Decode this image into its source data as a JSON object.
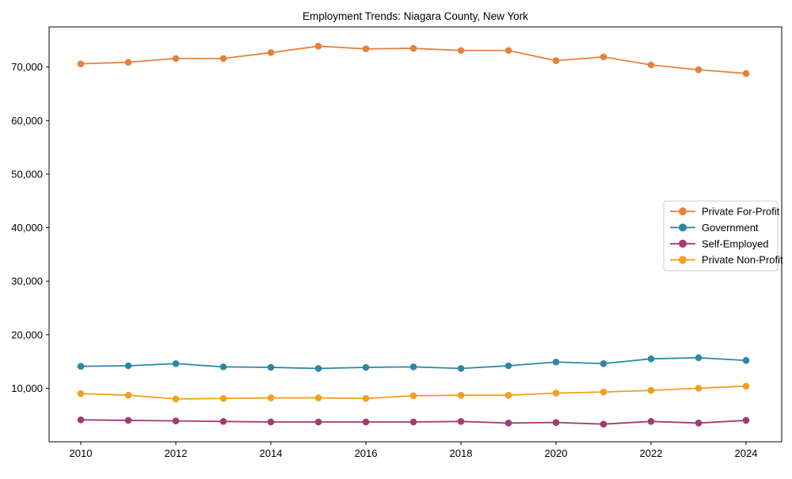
{
  "title": "Employment Trends: Niagara County, New York",
  "chart_data": {
    "type": "line",
    "title": "Employment Trends: Niagara County, New York",
    "xlabel": "",
    "ylabel": "",
    "x": [
      2010,
      2011,
      2012,
      2013,
      2014,
      2015,
      2016,
      2017,
      2018,
      2019,
      2020,
      2021,
      2022,
      2023,
      2024
    ],
    "series": [
      {
        "name": "Private For-Profit",
        "color": "#E5813D",
        "values": [
          70600,
          70900,
          71600,
          71600,
          72700,
          73900,
          73400,
          73500,
          73100,
          73100,
          71200,
          71900,
          70400,
          69500,
          68800
        ]
      },
      {
        "name": "Government",
        "color": "#2E86A5",
        "values": [
          14100,
          14200,
          14600,
          14000,
          13900,
          13700,
          13900,
          14000,
          13700,
          14200,
          14900,
          14600,
          15500,
          15700,
          15200
        ]
      },
      {
        "name": "Self-Employed",
        "color": "#A23B72",
        "values": [
          4100,
          4000,
          3900,
          3800,
          3700,
          3700,
          3700,
          3700,
          3800,
          3500,
          3600,
          3300,
          3800,
          3500,
          4000
        ]
      },
      {
        "name": "Private Non-Profit",
        "color": "#F0A020",
        "values": [
          9000,
          8700,
          8000,
          8100,
          8200,
          8200,
          8100,
          8600,
          8700,
          8700,
          9100,
          9300,
          9600,
          10000,
          10400
        ]
      }
    ],
    "xticks": [
      2010,
      2012,
      2014,
      2016,
      2018,
      2020,
      2022,
      2024
    ],
    "yticks": [
      10000,
      20000,
      30000,
      40000,
      50000,
      60000,
      70000
    ],
    "ytick_labels": [
      "10,000",
      "20,000",
      "30,000",
      "40,000",
      "50,000",
      "60,000",
      "70,000"
    ],
    "xlim": [
      2009.333,
      2024.75
    ],
    "ylim": [
      0,
      77500
    ],
    "grid": false,
    "legend_position": "center-right",
    "axis_color": "#000000",
    "background_color": "#ffffff"
  }
}
